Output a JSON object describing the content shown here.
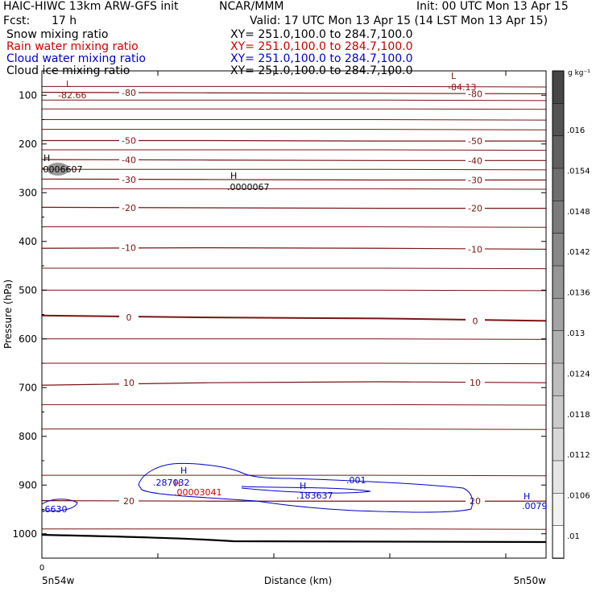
{
  "header": {
    "model": "HAIC-HIWC 13km ARW-GFS init",
    "org": "NCAR/MMM",
    "init": "Init: 00 UTC Mon 13 Apr 15",
    "fcst_label": "Fcst:",
    "fcst_value": "17 h",
    "valid": "Valid: 17 UTC Mon 13 Apr 15 (14 LST Mon 13 Apr 15)"
  },
  "fields": [
    {
      "name": "Snow mixing ratio",
      "xy": "XY= 251.0,100.0 to 284.7,100.0",
      "color": "#000000"
    },
    {
      "name": "Rain water mixing ratio",
      "xy": "XY= 251.0,100.0 to 284.7,100.0",
      "color": "#cc0000"
    },
    {
      "name": "Cloud water mixing ratio",
      "xy": "XY= 251.0,100.0 to 284.7,100.0",
      "color": "#0000cc"
    },
    {
      "name": "Cloud ice mixing ratio",
      "xy": "XY= 251.0,100.0 to 284.7,100.0",
      "color": "#000000"
    }
  ],
  "chart_data": {
    "type": "line",
    "xlabel": "Distance (km)",
    "ylabel": "Pressure (hPa)",
    "xlim": [
      0,
      440
    ],
    "ylim": [
      1050,
      50
    ],
    "x_ticks": [
      "0"
    ],
    "x_end_labels": [
      "5n54w",
      "5n50w"
    ],
    "y_ticks": [
      100,
      200,
      300,
      400,
      500,
      600,
      700,
      800,
      900,
      1000
    ],
    "temperature_contours": [
      {
        "label": "-80",
        "p": [
          94,
          95,
          96,
          97
        ]
      },
      {
        "label": "-50",
        "p": [
          193,
          193,
          194,
          194
        ]
      },
      {
        "label": "-40",
        "p": [
          232,
          233,
          234,
          234
        ]
      },
      {
        "label": "-30",
        "p": [
          272,
          273,
          274,
          274
        ]
      },
      {
        "label": "-20",
        "p": [
          330,
          331,
          332,
          332
        ]
      },
      {
        "label": "-10",
        "p": [
          414,
          413,
          414,
          416
        ]
      },
      {
        "label": "0",
        "p": [
          552,
          556,
          558,
          563
        ]
      },
      {
        "label": "10",
        "p": [
          695,
          690,
          688,
          690
        ]
      },
      {
        "label": "20",
        "p": [
          932,
          933,
          933,
          933
        ]
      }
    ],
    "extrema_labels": [
      {
        "mark": "L",
        "value": "-82.66",
        "color": "#8b1a1a"
      },
      {
        "mark": "L",
        "value": "-84.13",
        "color": "#8b1a1a"
      },
      {
        "mark": "H",
        "value": ".0006607",
        "color": "#000000"
      },
      {
        "mark": "H",
        "value": ".0000067",
        "color": "#000000"
      },
      {
        "mark": "H",
        "value": ".287032",
        "color": "#0000cc"
      },
      {
        "mark": "H",
        "value": ".00003041",
        "color": "#cc0000"
      },
      {
        "mark": "H",
        "value": ".183637",
        "color": "#0000cc"
      },
      {
        "mark": "H",
        "value": ".0079",
        "color": "#0000cc"
      },
      {
        "mark": "",
        "value": ".6630",
        "color": "#0000cc"
      },
      {
        "mark": "",
        "value": ".001",
        "color": "#0000cc"
      }
    ],
    "colorbar": {
      "unit": "g kg⁻¹",
      "labels": [
        ".016",
        ".0154",
        ".0148",
        ".0142",
        ".0136",
        ".013",
        ".0124",
        ".0118",
        ".0112",
        ".0106",
        ".01"
      ]
    }
  }
}
